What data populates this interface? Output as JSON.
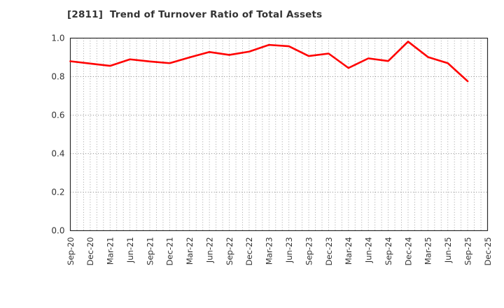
{
  "title": "[2811]  Trend of Turnover Ratio of Total Assets",
  "chart_data": {
    "type": "line",
    "title": "[2811]  Trend of Turnover Ratio of Total Assets",
    "xlabel": "",
    "ylabel": "",
    "x_tick_labels": [
      "Sep-20",
      "Dec-20",
      "Mar-21",
      "Jun-21",
      "Sep-21",
      "Dec-21",
      "Mar-22",
      "Jun-22",
      "Sep-22",
      "Dec-22",
      "Mar-23",
      "Jun-23",
      "Sep-23",
      "Dec-23",
      "Mar-24",
      "Jun-24",
      "Sep-24",
      "Dec-24",
      "Mar-25",
      "Jun-25",
      "Sep-25",
      "Dec-25"
    ],
    "series": [
      {
        "name": "Turnover Ratio of Total Assets",
        "color": "#ff0000",
        "x": [
          "Sep-20",
          "Dec-20",
          "Mar-21",
          "Jun-21",
          "Sep-21",
          "Dec-21",
          "Mar-22",
          "Jun-22",
          "Sep-22",
          "Dec-22",
          "Mar-23",
          "Jun-23",
          "Sep-23",
          "Dec-23",
          "Mar-24",
          "Jun-24",
          "Sep-24",
          "Dec-24",
          "Mar-25",
          "Jun-25",
          "Sep-25"
        ],
        "values": [
          0.88,
          0.868,
          0.856,
          0.89,
          0.879,
          0.87,
          0.9,
          0.928,
          0.913,
          0.93,
          0.965,
          0.958,
          0.907,
          0.92,
          0.845,
          0.895,
          0.881,
          0.982,
          0.902,
          0.87,
          0.776
        ]
      }
    ],
    "ylim": [
      0.0,
      1.0
    ],
    "yticks": [
      0.0,
      0.2,
      0.4,
      0.6,
      0.8,
      1.0
    ],
    "ytick_labels": [
      "0.0",
      "0.2",
      "0.4",
      "0.6",
      "0.8",
      "1.0"
    ],
    "grid": "dotted, horizontal at major y ticks, vertical at monthly minor ticks",
    "minor_x_divisions_per_interval": 3,
    "legend_position": "none"
  },
  "colors": {
    "line": "#ff0000",
    "grid": "#999999",
    "frame": "#2a2a2a",
    "tick_text": "#333333",
    "title_text": "#333333",
    "background": "#ffffff"
  }
}
